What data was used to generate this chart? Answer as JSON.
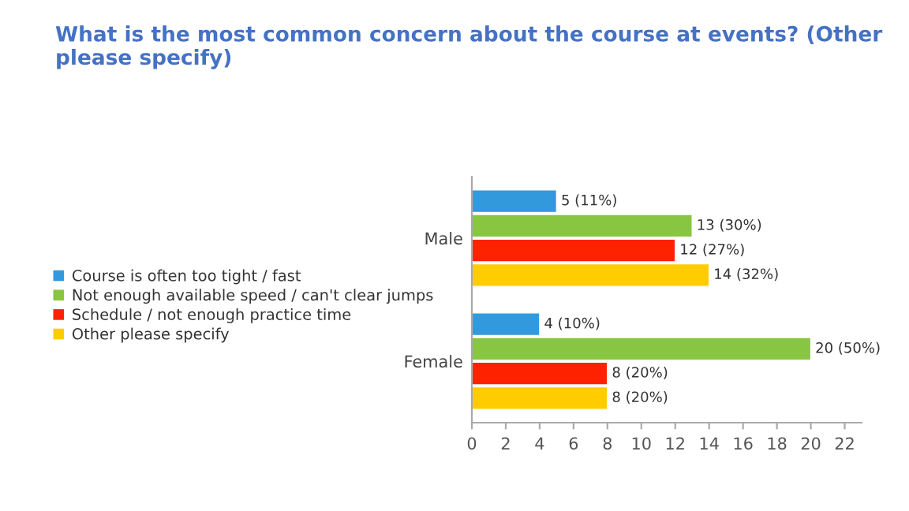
{
  "chart_data": {
    "type": "bar",
    "orientation": "horizontal",
    "title": "What is the most common concern about the course at events? (Other please specify)",
    "categories": [
      "Male",
      "Female"
    ],
    "series": [
      {
        "name": "Course is often too tight / fast",
        "color": "#3399dd",
        "values": [
          5,
          4
        ],
        "value_labels": [
          "5 (11%)",
          "4 (10%)"
        ]
      },
      {
        "name": "Not enough available speed / can't clear jumps",
        "color": "#88c540",
        "values": [
          13,
          20
        ],
        "value_labels": [
          "13 (30%)",
          "20 (50%)"
        ]
      },
      {
        "name": "Schedule / not enough practice time",
        "color": "#ff2200",
        "values": [
          12,
          8
        ],
        "value_labels": [
          "12 (27%)",
          "8 (20%)"
        ]
      },
      {
        "name": "Other please specify",
        "color": "#ffcc00",
        "values": [
          14,
          8
        ],
        "value_labels": [
          "14 (32%)",
          "8 (20%)"
        ]
      }
    ],
    "xlim": [
      0,
      23
    ],
    "xticks": [
      0,
      2,
      4,
      6,
      8,
      10,
      12,
      14,
      16,
      18,
      20,
      22
    ],
    "grid": false,
    "legend": "left"
  }
}
